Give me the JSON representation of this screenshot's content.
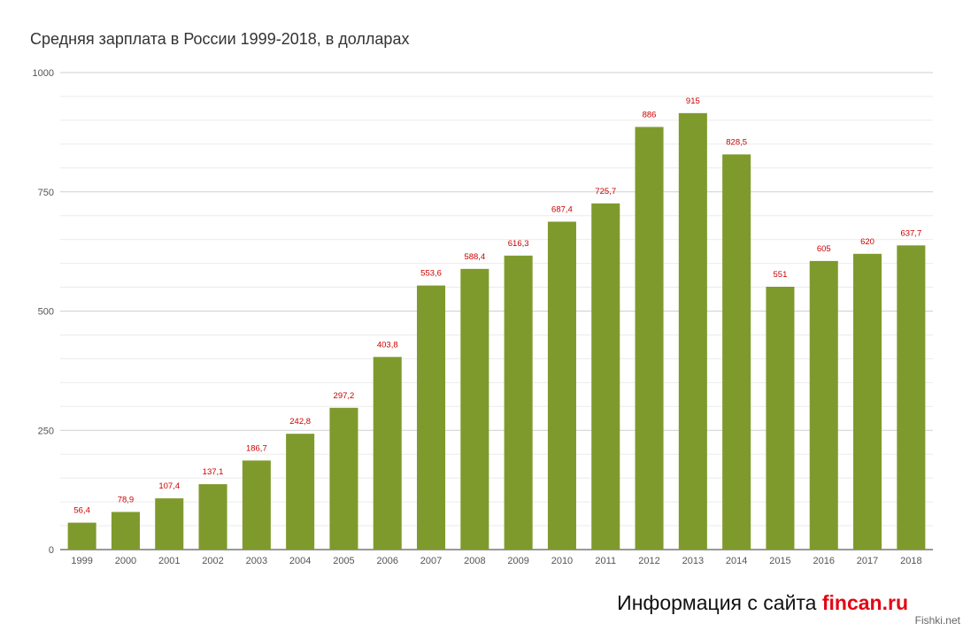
{
  "chart_data": {
    "type": "bar",
    "title": "Средняя зарплата в России 1999-2018, в долларах",
    "xlabel": "",
    "ylabel": "",
    "categories": [
      "1999",
      "2000",
      "2001",
      "2002",
      "2003",
      "2004",
      "2005",
      "2006",
      "2007",
      "2008",
      "2009",
      "2010",
      "2011",
      "2012",
      "2013",
      "2014",
      "2015",
      "2016",
      "2017",
      "2018"
    ],
    "values": [
      56.4,
      78.9,
      107.4,
      137.1,
      186.7,
      242.8,
      297.2,
      403.8,
      553.6,
      588.4,
      616.3,
      687.4,
      725.7,
      886,
      915,
      828.5,
      551,
      605,
      620,
      637.7
    ],
    "data_labels": [
      "56,4",
      "78,9",
      "107,4",
      "137,1",
      "186,7",
      "242,8",
      "297,2",
      "403,8",
      "553,6",
      "588,4",
      "616,3",
      "687,4",
      "725,7",
      "886",
      "915",
      "828,5",
      "551",
      "605",
      "620",
      "637,7"
    ],
    "ylim": [
      0,
      1000
    ],
    "yticks": [
      0,
      250,
      500,
      750,
      1000
    ],
    "grid": true,
    "bar_color": "#7f9a2c",
    "data_label_color": "#cc0000"
  },
  "footer": {
    "prefix": "Информация с сайта ",
    "site": "fincan.ru"
  },
  "watermark": "Fishki.net"
}
